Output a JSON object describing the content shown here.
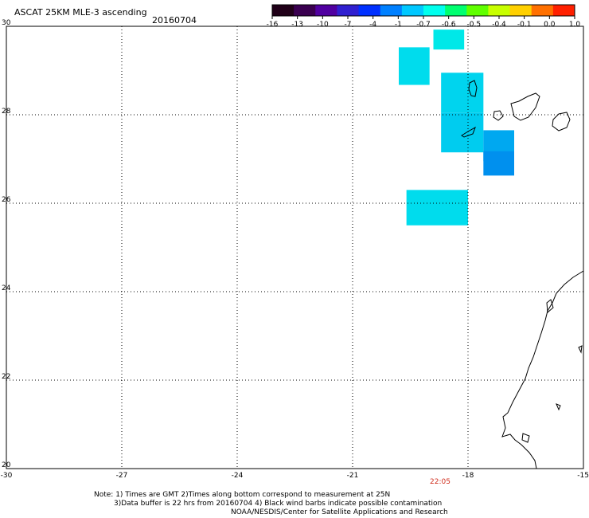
{
  "header": {
    "title": "ASCAT 25KM MLE-3 ascending",
    "date": "20160704"
  },
  "colorbar": {
    "labels": [
      "-16",
      "-13",
      "-10",
      "-7",
      "-4",
      "-1",
      "-0.7",
      "-0.6",
      "-0.5",
      "-0.4",
      "-0.1",
      "0.0",
      "1.0"
    ],
    "colors": [
      "#200018",
      "#3a0050",
      "#5000a0",
      "#3020d0",
      "#0030ff",
      "#0080ff",
      "#00c8ff",
      "#00ffee",
      "#00ff70",
      "#60ff00",
      "#c8ff00",
      "#ffd000",
      "#ff7000",
      "#ff2000"
    ]
  },
  "axes": {
    "x_ticks": [
      "-30",
      "-27",
      "-24",
      "-21",
      "-18",
      "-15"
    ],
    "y_ticks": [
      "30",
      "28",
      "26",
      "24",
      "22",
      "20"
    ],
    "time_label": "22:05",
    "time_color": "#d03020"
  },
  "notes": {
    "line1": "Note: 1) Times are GMT 2)Times along bottom correspond to measurement at 25N",
    "line2": "3)Data buffer is 22 hrs from 20160704 4) Black wind barbs indicate possible contamination",
    "line3": "NOAA/NESDIS/Center for Satellite Applications and Research"
  },
  "map_data": {
    "lon_range": [
      -30,
      -15
    ],
    "lat_range": [
      20,
      30
    ],
    "cells": [
      {
        "lon": -18.9,
        "lat": 29.7,
        "w": 0.8,
        "h": 0.45,
        "color": "#00e8e8"
      },
      {
        "lon": -19.8,
        "lat": 29.1,
        "w": 0.8,
        "h": 0.85,
        "color": "#00dced"
      },
      {
        "lon": -18.7,
        "lat": 28.5,
        "w": 1.1,
        "h": 0.9,
        "color": "#00d4ee"
      },
      {
        "lon": -18.7,
        "lat": 27.6,
        "w": 1.1,
        "h": 0.9,
        "color": "#00ccef"
      },
      {
        "lon": -17.6,
        "lat": 27.3,
        "w": 0.8,
        "h": 0.7,
        "color": "#00a8f0"
      },
      {
        "lon": -17.6,
        "lat": 26.9,
        "w": 0.8,
        "h": 0.55,
        "color": "#0090ee"
      },
      {
        "lon": -19.6,
        "lat": 25.9,
        "w": 1.6,
        "h": 0.8,
        "color": "#00dced"
      }
    ]
  }
}
